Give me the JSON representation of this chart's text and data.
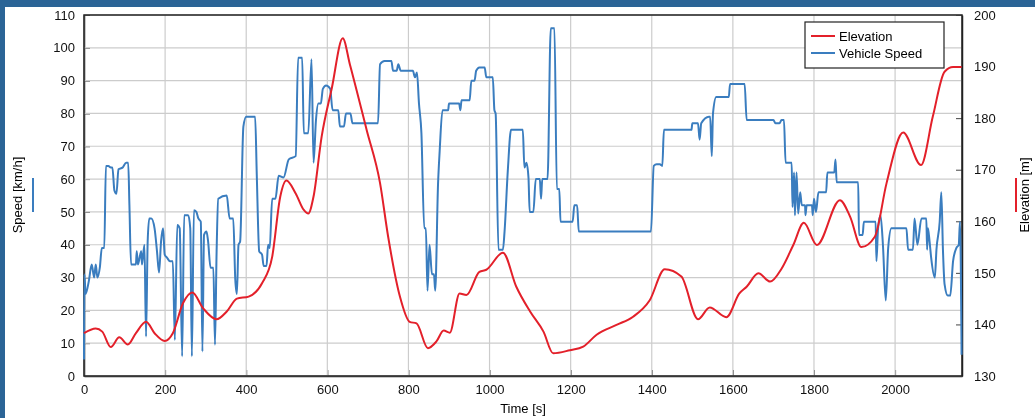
{
  "chart_data": {
    "type": "line",
    "xlabel": "Time [s]",
    "ylabel": "Speed [km/h]",
    "y2label": "Elevation [m]",
    "xlim": [
      0,
      2165
    ],
    "xticks": [
      0,
      200,
      400,
      600,
      800,
      1000,
      1200,
      1400,
      1600,
      1800,
      2000
    ],
    "ylim": [
      0,
      110
    ],
    "yticks": [
      0,
      10,
      20,
      30,
      40,
      50,
      60,
      70,
      80,
      90,
      100,
      110
    ],
    "y2lim": [
      130,
      200
    ],
    "y2ticks": [
      130,
      140,
      150,
      160,
      170,
      180,
      190,
      200
    ],
    "grid": true,
    "legend": "top right",
    "line_style": "solid",
    "marker": "none",
    "series": [
      {
        "name": "Elevation",
        "color": "#e3202a",
        "axis": "y2",
        "x": [
          0,
          29,
          45,
          66,
          87,
          108,
          128,
          153,
          174,
          199,
          219,
          244,
          267,
          294,
          327,
          352,
          377,
          406,
          439,
          464,
          484,
          499,
          522,
          542,
          553,
          566,
          586,
          611,
          638,
          656,
          697,
          730,
          750,
          779,
          803,
          820,
          848,
          869,
          887,
          902,
          926,
          943,
          975,
          992,
          1033,
          1066,
          1100,
          1133,
          1157,
          1198,
          1231,
          1264,
          1313,
          1354,
          1395,
          1432,
          1473,
          1514,
          1543,
          1584,
          1616,
          1634,
          1663,
          1692,
          1720,
          1749,
          1775,
          1807,
          1864,
          1889,
          1917,
          1950,
          1979,
          2020,
          2064,
          2093,
          2122,
          2143,
          2164
        ],
        "values": [
          138.3,
          139.2,
          138.6,
          135.6,
          137.5,
          136.1,
          138.3,
          140.5,
          138.3,
          136.8,
          138.3,
          144.1,
          146.2,
          143.1,
          141,
          142.5,
          145,
          145.4,
          148,
          153.1,
          164.8,
          167.9,
          165.4,
          162.2,
          161.5,
          164.8,
          176.4,
          185.8,
          195.5,
          190.3,
          177.7,
          167.4,
          157,
          145.4,
          140.5,
          140.2,
          135.4,
          136.7,
          138.8,
          138.4,
          146,
          145.7,
          150.2,
          150.6,
          153.9,
          147.3,
          142.5,
          138.6,
          134.4,
          135,
          135.7,
          138,
          139.9,
          141.5,
          144.7,
          150.7,
          149.3,
          141,
          143.3,
          141.4,
          146,
          147.3,
          149.9,
          148.3,
          150.8,
          155.4,
          159.7,
          155.4,
          164.1,
          160.9,
          155,
          157,
          167.4,
          177.2,
          170.9,
          180.3,
          189,
          189.9,
          189.9
        ]
      },
      {
        "name": "Vehicle Speed",
        "color": "#3a7dbf",
        "axis": "y",
        "x": [
          0,
          1,
          4,
          12,
          19,
          25,
          29,
          33,
          39,
          44,
          50,
          54,
          60,
          66,
          70,
          75,
          80,
          85,
          95,
          104,
          109,
          112,
          116,
          128,
          130,
          133,
          141,
          143,
          149,
          153,
          157,
          161,
          166,
          174,
          180,
          185,
          190,
          195,
          199,
          205,
          212,
          219,
          224,
          230,
          236,
          242,
          247,
          257,
          262,
          266,
          271,
          277,
          282,
          288,
          292,
          296,
          302,
          306,
          312,
          319,
          323,
          327,
          331,
          352,
          359,
          368,
          373,
          377,
          381,
          385,
          393,
          400,
          422,
          426,
          432,
          439,
          443,
          450,
          454,
          458,
          464,
          472,
          480,
          492,
          505,
          522,
          528,
          538,
          542,
          553,
          561,
          566,
          572,
          578,
          584,
          589,
          597,
          607,
          613,
          627,
          631,
          641,
          646,
          657,
          662,
          725,
          730,
          741,
          758,
          762,
          771,
          775,
          781,
          811,
          816,
          821,
          826,
          832,
          839,
          843,
          847,
          852,
          858,
          863,
          866,
          873,
          877,
          884,
          898,
          900,
          925,
          928,
          931,
          951,
          955,
          963,
          967,
          975,
          988,
          992,
          1008,
          1012,
          1015,
          1022,
          1033,
          1037,
          1045,
          1053,
          1082,
          1086,
          1091,
          1096,
          1099,
          1108,
          1114,
          1124,
          1127,
          1130,
          1143,
          1151,
          1160,
          1166,
          1172,
          1175,
          1205,
          1209,
          1216,
          1220,
          1398,
          1405,
          1412,
          1420,
          1426,
          1430,
          1498,
          1500,
          1514,
          1518,
          1522,
          1541,
          1544,
          1548,
          1551,
          1559,
          1590,
          1593,
          1629,
          1634,
          1700,
          1705,
          1715,
          1720,
          1726,
          1730,
          1745,
          1747,
          1751,
          1753,
          1757,
          1761,
          1766,
          1770,
          1778,
          1779,
          1782,
          1795,
          1797,
          1800,
          1805,
          1811,
          1830,
          1833,
          1850,
          1853,
          1856,
          1909,
          1911,
          1920,
          1923,
          1952,
          1954,
          1958,
          1964,
          1970,
          1977,
          1983,
          1991,
          2028,
          2032,
          2044,
          2048,
          2055,
          2065,
          2077,
          2079,
          2081,
          2085,
          2089,
          2098,
          2102,
          2110,
          2114,
          2118,
          2122,
          2130,
          2136,
          2143,
          2151,
          2157,
          2160,
          2164
        ],
        "values": [
          5,
          31,
          25,
          29,
          34,
          30,
          34,
          30,
          33,
          39,
          39,
          64,
          64,
          63.5,
          63.5,
          56.5,
          55.5,
          63,
          63.5,
          65,
          65,
          52,
          34,
          34,
          38,
          34,
          38,
          34,
          40,
          12,
          41,
          48,
          48,
          45,
          38,
          31.5,
          41,
          45,
          37,
          36,
          35,
          35,
          11,
          46,
          45,
          6,
          49,
          49,
          45,
          6,
          50.5,
          50,
          48,
          47,
          7.5,
          43,
          44,
          41,
          33,
          33,
          9.5,
          38,
          54,
          55,
          48,
          48,
          29.5,
          25,
          40,
          41,
          76,
          79,
          79,
          61.5,
          38,
          37,
          33.5,
          33.5,
          40,
          39,
          54,
          54,
          61,
          60.5,
          66,
          67,
          97,
          97,
          74,
          74,
          96.5,
          65,
          78,
          83,
          83,
          87.5,
          88.5,
          87.5,
          81,
          81,
          76,
          76,
          80,
          80,
          77,
          77,
          95,
          96,
          96,
          93,
          93,
          95,
          93,
          93,
          91,
          92.5,
          83,
          74,
          45,
          45,
          26,
          40,
          31,
          31,
          26,
          58.5,
          68.5,
          81,
          81,
          83,
          83,
          81,
          84,
          84,
          90,
          90,
          93,
          94,
          94,
          91,
          91,
          81,
          80,
          38.5,
          38.5,
          44,
          62.5,
          75,
          75,
          63.5,
          65,
          60.5,
          50,
          50,
          60,
          60,
          54,
          60,
          60,
          106,
          106,
          57,
          57,
          47,
          47,
          52,
          52,
          44,
          44,
          64,
          64.5,
          64.5,
          64,
          75,
          75,
          77,
          77,
          72,
          77,
          79,
          79,
          67,
          80,
          85,
          85,
          89,
          89,
          78,
          78,
          77,
          77,
          78,
          78,
          65,
          65,
          51.5,
          62,
          49,
          62,
          49.5,
          56,
          52,
          52,
          49,
          52,
          52,
          49,
          54,
          50,
          56,
          56,
          62,
          62,
          66,
          59,
          59,
          43,
          43,
          47,
          47,
          35,
          45,
          49,
          40,
          23,
          39,
          45,
          45,
          38.5,
          38.5,
          48,
          40,
          48,
          48,
          38.5,
          45,
          41,
          36,
          30,
          38.5,
          47,
          56,
          38.5,
          28,
          24.5,
          24.5,
          35,
          39,
          40,
          47,
          6.5
        ]
      }
    ]
  }
}
